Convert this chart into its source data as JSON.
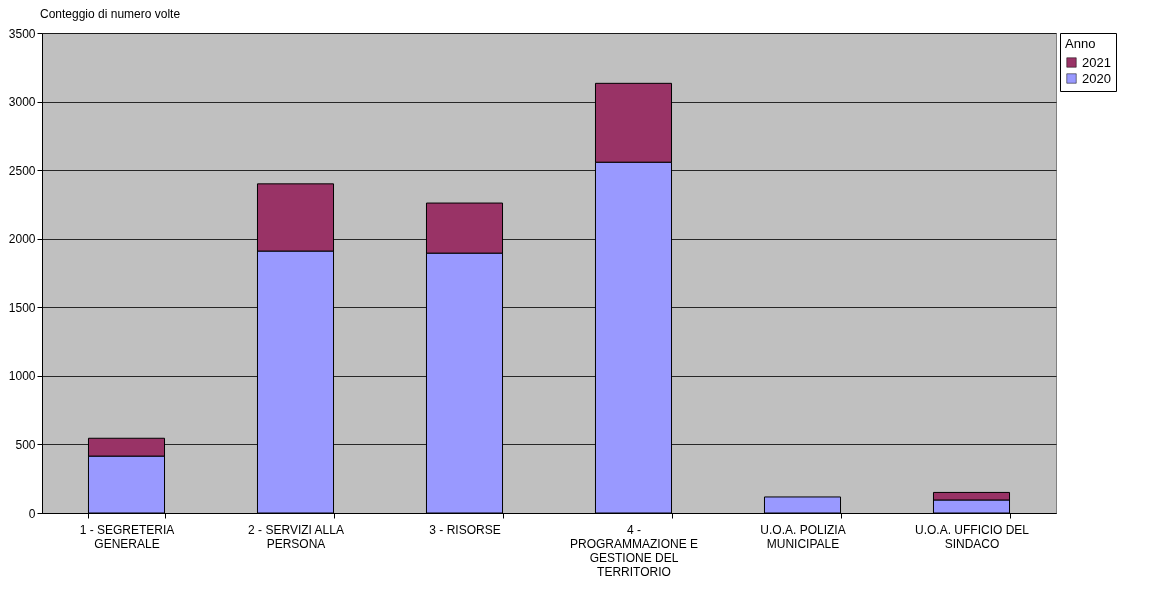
{
  "chart_data": {
    "type": "bar",
    "title": "Conteggio di numero volte",
    "legend_title": "Anno",
    "stacked": true,
    "categories": [
      "1 - SEGRETERIA GENERALE",
      "2 - SERVIZI ALLA PERSONA",
      "3 - RISORSE",
      "4 - PROGRAMMAZIONE E GESTIONE DEL TERRITORIO",
      "U.O.A. POLIZIA MUNICIPALE",
      "U.O.A. UFFICIO DEL SINDACO"
    ],
    "series": [
      {
        "name": "2020",
        "color": "#9999ff",
        "values": [
          415,
          1910,
          1895,
          2558,
          117,
          95
        ]
      },
      {
        "name": "2021",
        "color": "#993366",
        "values": [
          130,
          490,
          365,
          575,
          null,
          55
        ]
      }
    ],
    "ylim": [
      0,
      3500
    ],
    "yticks": [
      0,
      500,
      1000,
      1500,
      2000,
      2500,
      3000,
      3500
    ],
    "grid": "y",
    "legend": "right"
  }
}
